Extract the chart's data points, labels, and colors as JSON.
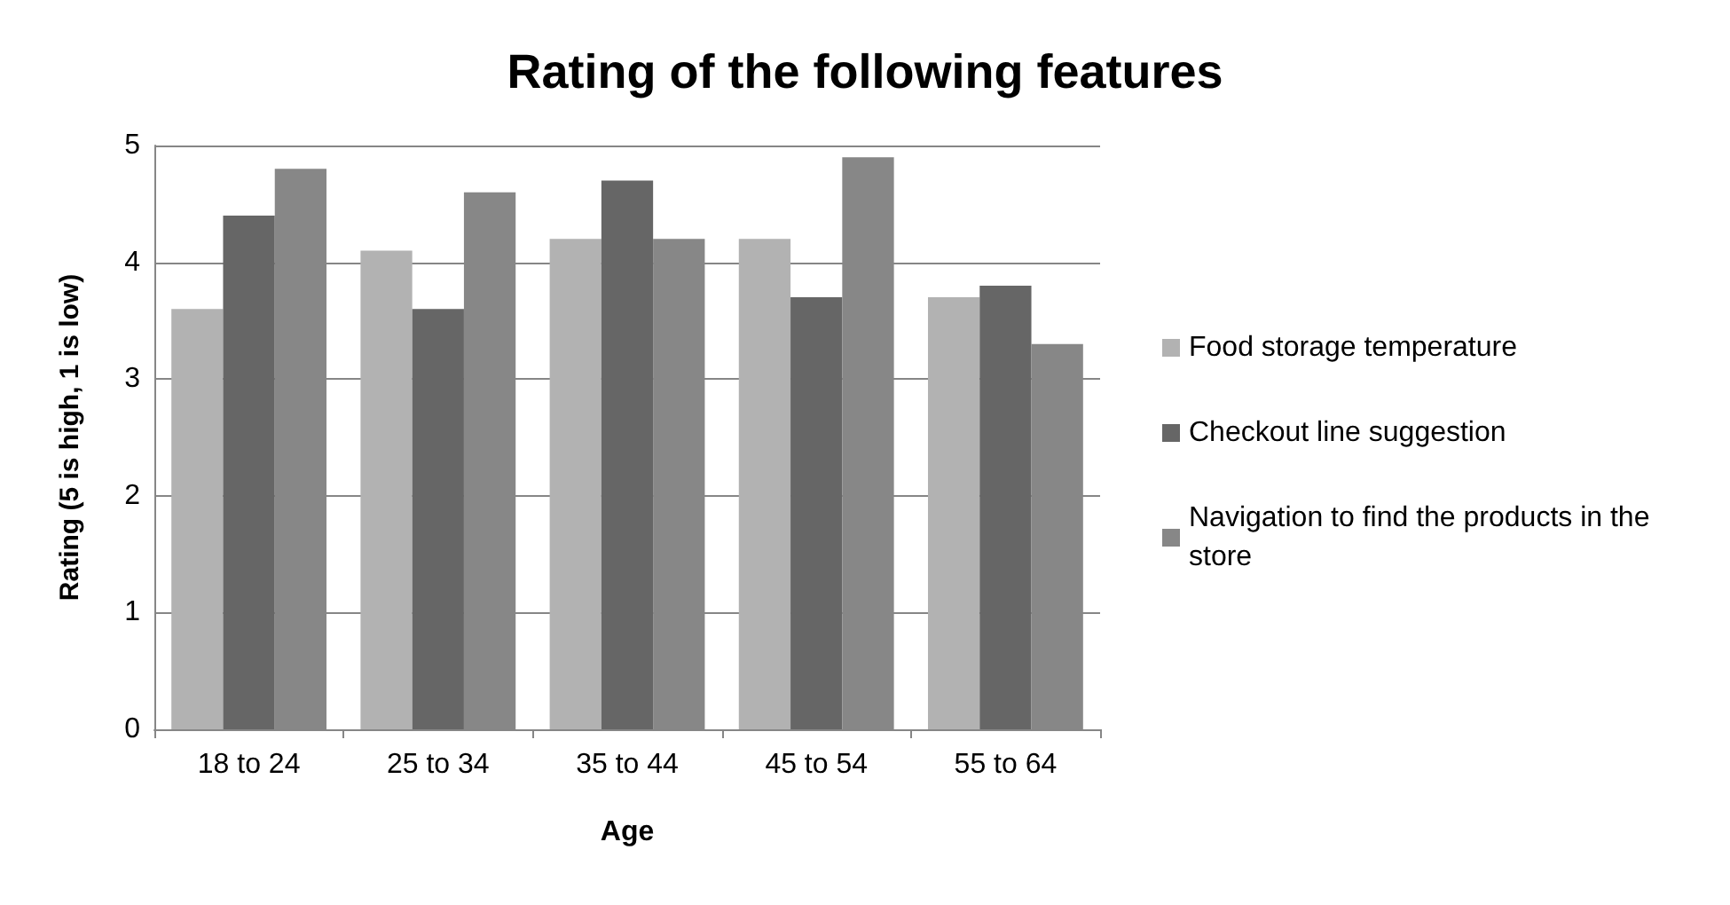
{
  "chart_data": {
    "type": "bar",
    "title": "Rating of the following features",
    "xlabel": "Age",
    "ylabel": "Rating (5 is high, 1 is low)",
    "categories": [
      "18 to 24",
      "25 to 34",
      "35 to 44",
      "45 to 54",
      "55 to 64"
    ],
    "series": [
      {
        "name": "Food storage temperature",
        "color": "#b2b2b2",
        "values": [
          3.6,
          4.1,
          4.2,
          4.2,
          3.7
        ]
      },
      {
        "name": "Checkout line suggestion",
        "color": "#666666",
        "values": [
          4.4,
          3.6,
          4.7,
          3.7,
          3.8
        ]
      },
      {
        "name": "Navigation to find the products in the store",
        "color": "#878787",
        "values": [
          4.8,
          4.6,
          4.2,
          4.9,
          3.3
        ]
      }
    ],
    "ylim": [
      0,
      5
    ],
    "yticks": [
      0,
      1,
      2,
      3,
      4,
      5
    ],
    "grid": "y",
    "legend": "right"
  }
}
